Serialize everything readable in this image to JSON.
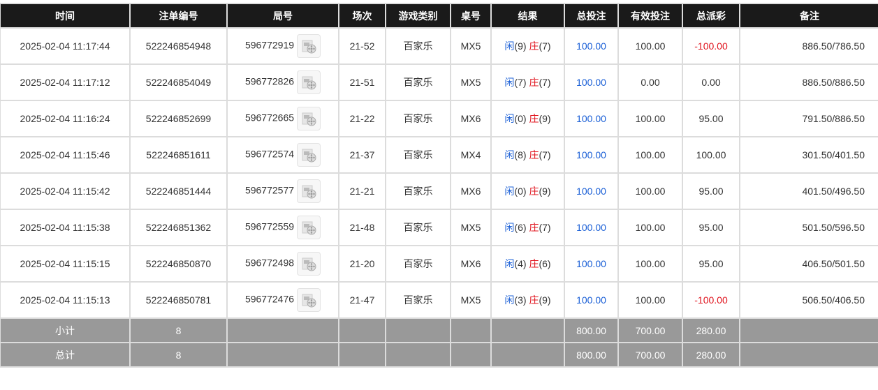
{
  "headers": [
    "时间",
    "注单编号",
    "局号",
    "场次",
    "游戏类别",
    "桌号",
    "结果",
    "总投注",
    "有效投注",
    "总派彩",
    "备注"
  ],
  "player_label": "闲",
  "banker_label": "庄",
  "colors": {
    "header_bg": "#1a1a1a",
    "summary_bg": "#999999",
    "blue": "#1a5fd6",
    "red": "#e0141e"
  },
  "rows": [
    {
      "time": "2025-02-04 11:17:44",
      "bet_id": "522246854948",
      "round": "596772919",
      "shoe": "21-52",
      "game": "百家乐",
      "table": "MX5",
      "player": "(9)",
      "banker": "(7)",
      "total": "100.00",
      "valid": "100.00",
      "payout": "-100.00",
      "note": "886.50/786.50"
    },
    {
      "time": "2025-02-04 11:17:12",
      "bet_id": "522246854049",
      "round": "596772826",
      "shoe": "21-51",
      "game": "百家乐",
      "table": "MX5",
      "player": "(7)",
      "banker": "(7)",
      "total": "100.00",
      "valid": "0.00",
      "payout": "0.00",
      "note": "886.50/886.50"
    },
    {
      "time": "2025-02-04 11:16:24",
      "bet_id": "522246852699",
      "round": "596772665",
      "shoe": "21-22",
      "game": "百家乐",
      "table": "MX6",
      "player": "(0)",
      "banker": "(9)",
      "total": "100.00",
      "valid": "100.00",
      "payout": "95.00",
      "note": "791.50/886.50"
    },
    {
      "time": "2025-02-04 11:15:46",
      "bet_id": "522246851611",
      "round": "596772574",
      "shoe": "21-37",
      "game": "百家乐",
      "table": "MX4",
      "player": "(8)",
      "banker": "(7)",
      "total": "100.00",
      "valid": "100.00",
      "payout": "100.00",
      "note": "301.50/401.50"
    },
    {
      "time": "2025-02-04 11:15:42",
      "bet_id": "522246851444",
      "round": "596772577",
      "shoe": "21-21",
      "game": "百家乐",
      "table": "MX6",
      "player": "(0)",
      "banker": "(9)",
      "total": "100.00",
      "valid": "100.00",
      "payout": "95.00",
      "note": "401.50/496.50"
    },
    {
      "time": "2025-02-04 11:15:38",
      "bet_id": "522246851362",
      "round": "596772559",
      "shoe": "21-48",
      "game": "百家乐",
      "table": "MX5",
      "player": "(6)",
      "banker": "(7)",
      "total": "100.00",
      "valid": "100.00",
      "payout": "95.00",
      "note": "501.50/596.50"
    },
    {
      "time": "2025-02-04 11:15:15",
      "bet_id": "522246850870",
      "round": "596772498",
      "shoe": "21-20",
      "game": "百家乐",
      "table": "MX6",
      "player": "(4)",
      "banker": "(6)",
      "total": "100.00",
      "valid": "100.00",
      "payout": "95.00",
      "note": "406.50/501.50"
    },
    {
      "time": "2025-02-04 11:15:13",
      "bet_id": "522246850781",
      "round": "596772476",
      "shoe": "21-47",
      "game": "百家乐",
      "table": "MX5",
      "player": "(3)",
      "banker": "(9)",
      "total": "100.00",
      "valid": "100.00",
      "payout": "-100.00",
      "note": "506.50/406.50"
    }
  ],
  "summary": [
    {
      "label": "小计",
      "count": "8",
      "total": "800.00",
      "valid": "700.00",
      "payout": "280.00"
    },
    {
      "label": "总计",
      "count": "8",
      "total": "800.00",
      "valid": "700.00",
      "payout": "280.00"
    }
  ]
}
